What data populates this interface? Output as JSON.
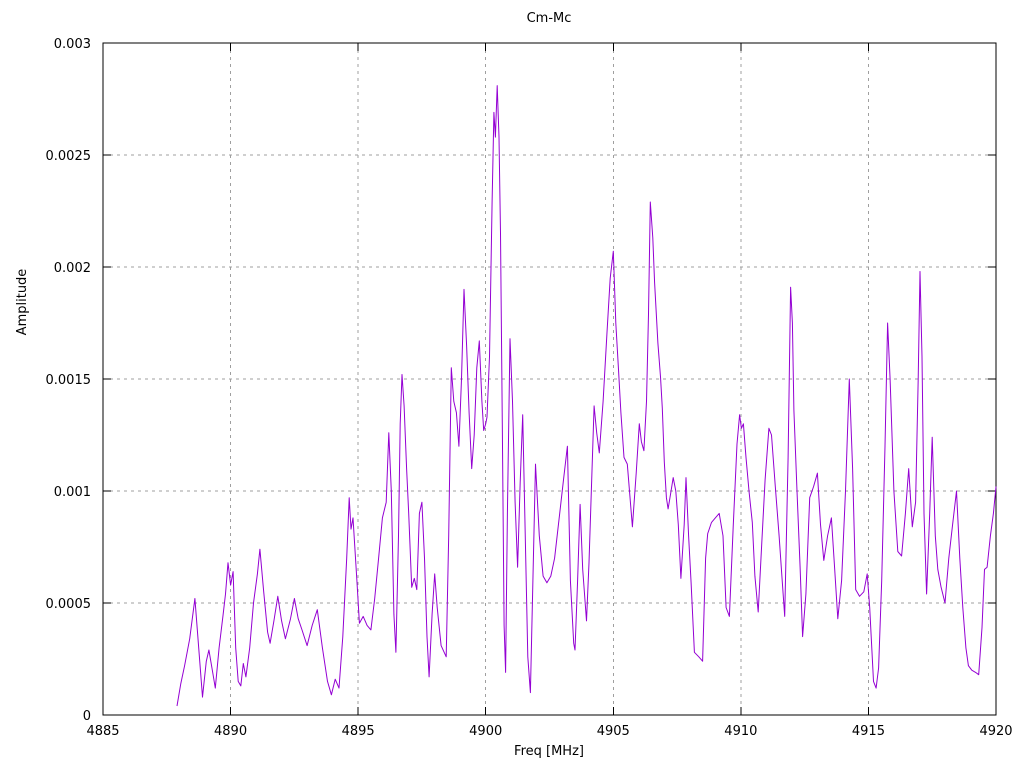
{
  "colors": {
    "line": "#9400D3",
    "grid": "#9f9f9f",
    "border": "#000000",
    "background": "#ffffff",
    "text": "#000000"
  },
  "chart_data": {
    "type": "line",
    "title": "Cm-Mc",
    "xlabel": "Freq [MHz]",
    "ylabel": "Amplitude",
    "xlim": [
      4885,
      4920
    ],
    "ylim": [
      0,
      0.003
    ],
    "x_ticks": [
      "4885",
      "4890",
      "4895",
      "4900",
      "4905",
      "4910",
      "4915",
      "4920"
    ],
    "y_ticks": [
      "0",
      "0.0005",
      "0.001",
      "0.0015",
      "0.002",
      "0.0025",
      "0.003"
    ],
    "grid": "dotted",
    "legend": "none",
    "series": [
      {
        "name": "Cm-Mc",
        "color": "#9400D3",
        "x": [
          4887.9,
          4888.05,
          4888.2,
          4888.4,
          4888.6,
          4888.75,
          4888.9,
          4889.05,
          4889.15,
          4889.3,
          4889.4,
          4889.55,
          4889.7,
          4889.8,
          4889.9,
          4890.0,
          4890.1,
          4890.2,
          4890.3,
          4890.4,
          4890.5,
          4890.6,
          4890.75,
          4890.9,
          4891.05,
          4891.15,
          4891.3,
          4891.45,
          4891.55,
          4891.7,
          4891.85,
          4892.0,
          4892.15,
          4892.35,
          4892.5,
          4892.65,
          4892.8,
          4893.0,
          4893.2,
          4893.4,
          4893.6,
          4893.8,
          4893.95,
          4894.1,
          4894.25,
          4894.4,
          4894.55,
          4894.65,
          4894.72,
          4894.8,
          4894.95,
          4895.05,
          4895.2,
          4895.35,
          4895.5,
          4895.65,
          4895.8,
          4895.95,
          4896.1,
          4896.2,
          4896.3,
          4896.4,
          4896.48,
          4896.58,
          4896.65,
          4896.72,
          4896.8,
          4896.9,
          4896.98,
          4897.1,
          4897.2,
          4897.3,
          4897.4,
          4897.5,
          4897.6,
          4897.7,
          4897.78,
          4897.9,
          4898.0,
          4898.1,
          4898.25,
          4898.45,
          4898.55,
          4898.65,
          4898.75,
          4898.85,
          4898.95,
          4899.05,
          4899.15,
          4899.25,
          4899.35,
          4899.45,
          4899.55,
          4899.65,
          4899.75,
          4899.85,
          4899.92,
          4900.0,
          4900.05,
          4900.15,
          4900.25,
          4900.32,
          4900.38,
          4900.45,
          4900.52,
          4900.58,
          4900.65,
          4900.72,
          4900.78,
          4900.85,
          4900.95,
          4901.05,
          4901.15,
          4901.25,
          4901.35,
          4901.45,
          4901.55,
          4901.65,
          4901.75,
          4901.85,
          4901.95,
          4902.1,
          4902.25,
          4902.4,
          4902.55,
          4902.7,
          4902.9,
          4903.05,
          4903.2,
          4903.32,
          4903.45,
          4903.5,
          4903.6,
          4903.7,
          4903.8,
          4903.95,
          4904.05,
          4904.25,
          4904.35,
          4904.45,
          4904.6,
          4904.75,
          4904.88,
          4905.0,
          4905.1,
          4905.2,
          4905.3,
          4905.42,
          4905.55,
          4905.75,
          4905.9,
          4906.02,
          4906.1,
          4906.2,
          4906.3,
          4906.38,
          4906.45,
          4906.55,
          4906.62,
          4906.75,
          4906.85,
          4906.92,
          4907.0,
          4907.08,
          4907.15,
          4907.25,
          4907.35,
          4907.45,
          4907.55,
          4907.65,
          4907.78,
          4907.85,
          4907.95,
          4908.05,
          4908.18,
          4908.35,
          4908.5,
          4908.62,
          4908.7,
          4908.85,
          4909.0,
          4909.15,
          4909.3,
          4909.42,
          4909.55,
          4909.7,
          4909.85,
          4909.95,
          4910.02,
          4910.1,
          4910.2,
          4910.32,
          4910.45,
          4910.55,
          4910.68,
          4910.82,
          4910.95,
          4911.1,
          4911.2,
          4911.35,
          4911.5,
          4911.62,
          4911.72,
          4911.85,
          4911.95,
          4912.02,
          4912.08,
          4912.2,
          4912.32,
          4912.42,
          4912.55,
          4912.7,
          4912.85,
          4913.0,
          4913.12,
          4913.25,
          4913.4,
          4913.55,
          4913.68,
          4913.8,
          4913.95,
          4914.1,
          4914.25,
          4914.38,
          4914.5,
          4914.65,
          4914.82,
          4914.95,
          4915.05,
          4915.2,
          4915.3,
          4915.4,
          4915.52,
          4915.65,
          4915.75,
          4915.85,
          4916.0,
          4916.15,
          4916.3,
          4916.45,
          4916.58,
          4916.72,
          4916.85,
          4916.95,
          4917.02,
          4917.1,
          4917.18,
          4917.28,
          4917.4,
          4917.5,
          4917.62,
          4917.72,
          4917.85,
          4918.0,
          4918.15,
          4918.3,
          4918.45,
          4918.58,
          4918.7,
          4918.82,
          4918.92,
          4919.05,
          4919.2,
          4919.32,
          4919.45,
          4919.55,
          4919.65,
          4919.78,
          4919.9,
          4920.0
        ],
        "y": [
          4e-05,
          0.00014,
          0.00022,
          0.00034,
          0.00052,
          0.0003,
          8e-05,
          0.00024,
          0.00029,
          0.00019,
          0.00012,
          0.0003,
          0.00044,
          0.00054,
          0.00068,
          0.00058,
          0.00064,
          0.0003,
          0.00015,
          0.00013,
          0.00023,
          0.00017,
          0.0003,
          0.0005,
          0.00063,
          0.00074,
          0.00055,
          0.00037,
          0.00032,
          0.00042,
          0.00053,
          0.00042,
          0.00034,
          0.00043,
          0.00052,
          0.00043,
          0.00038,
          0.00031,
          0.0004,
          0.00047,
          0.0003,
          0.00015,
          9e-05,
          0.00016,
          0.00012,
          0.00035,
          0.0007,
          0.00097,
          0.00083,
          0.00088,
          0.0006,
          0.00041,
          0.00044,
          0.0004,
          0.00038,
          0.00052,
          0.0007,
          0.00088,
          0.00095,
          0.00126,
          0.001,
          0.00045,
          0.00028,
          0.0008,
          0.0013,
          0.00152,
          0.00138,
          0.0011,
          0.0009,
          0.00057,
          0.00061,
          0.00056,
          0.0009,
          0.00095,
          0.0007,
          0.00035,
          0.00017,
          0.00045,
          0.00063,
          0.00048,
          0.00031,
          0.00026,
          0.0008,
          0.00155,
          0.0014,
          0.00135,
          0.0012,
          0.0015,
          0.0019,
          0.00165,
          0.00135,
          0.0011,
          0.00125,
          0.00155,
          0.00167,
          0.0014,
          0.00127,
          0.0013,
          0.00133,
          0.0016,
          0.00229,
          0.00269,
          0.00258,
          0.00281,
          0.00258,
          0.00215,
          0.0013,
          0.0004,
          0.00019,
          0.0009,
          0.00168,
          0.0014,
          0.00095,
          0.00066,
          0.00104,
          0.00134,
          0.00079,
          0.00026,
          0.0001,
          0.0006,
          0.00112,
          0.0008,
          0.00062,
          0.00059,
          0.00062,
          0.0007,
          0.0009,
          0.00105,
          0.0012,
          0.0006,
          0.00032,
          0.00029,
          0.0006,
          0.00094,
          0.00065,
          0.00042,
          0.00068,
          0.00138,
          0.00126,
          0.00117,
          0.0014,
          0.0017,
          0.00195,
          0.00207,
          0.00175,
          0.00155,
          0.00135,
          0.00115,
          0.00112,
          0.00084,
          0.00108,
          0.0013,
          0.00122,
          0.00118,
          0.0014,
          0.00179,
          0.00229,
          0.00213,
          0.00193,
          0.00166,
          0.00151,
          0.00137,
          0.00113,
          0.00097,
          0.00092,
          0.00099,
          0.00106,
          0.001,
          0.00085,
          0.00061,
          0.00085,
          0.00106,
          0.0008,
          0.00059,
          0.00028,
          0.00026,
          0.00024,
          0.0007,
          0.00081,
          0.00086,
          0.00088,
          0.0009,
          0.0008,
          0.00048,
          0.00044,
          0.00084,
          0.00121,
          0.00134,
          0.00128,
          0.0013,
          0.00115,
          0.001,
          0.00086,
          0.00062,
          0.00046,
          0.00077,
          0.00105,
          0.00128,
          0.00125,
          0.00102,
          0.0008,
          0.0006,
          0.00044,
          0.00115,
          0.00191,
          0.00175,
          0.00136,
          0.001,
          0.00066,
          0.00035,
          0.00054,
          0.00097,
          0.00102,
          0.00108,
          0.00085,
          0.00069,
          0.0008,
          0.00088,
          0.00065,
          0.00043,
          0.0006,
          0.001,
          0.0015,
          0.0011,
          0.00056,
          0.00053,
          0.00055,
          0.00063,
          0.00048,
          0.00015,
          0.00012,
          0.00021,
          0.0006,
          0.0012,
          0.00175,
          0.0015,
          0.001,
          0.00073,
          0.00071,
          0.0009,
          0.0011,
          0.00084,
          0.00095,
          0.0015,
          0.00198,
          0.0016,
          0.0009,
          0.00054,
          0.0009,
          0.00124,
          0.0008,
          0.00065,
          0.00057,
          0.0005,
          0.0007,
          0.00085,
          0.001,
          0.0007,
          0.00048,
          0.0003,
          0.00022,
          0.0002,
          0.00019,
          0.00018,
          0.00039,
          0.00065,
          0.00066,
          0.0008,
          0.0009,
          0.00102
        ]
      }
    ]
  }
}
